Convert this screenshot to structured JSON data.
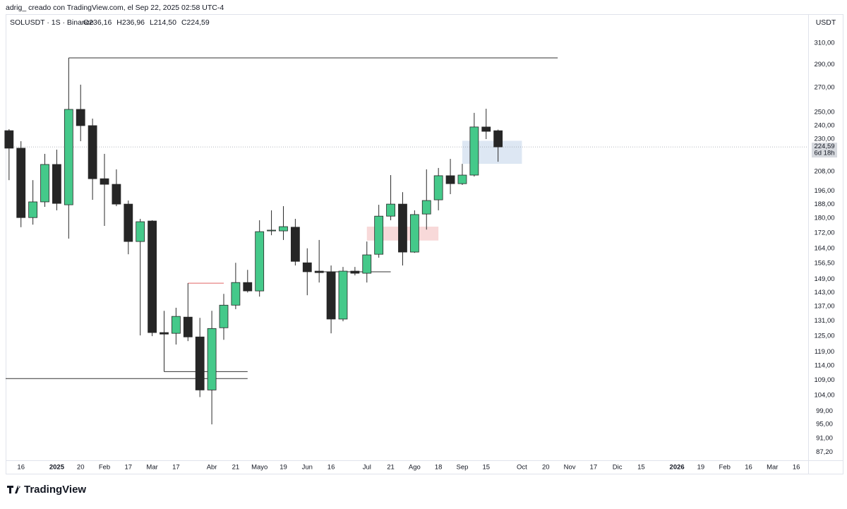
{
  "chart_data": {
    "type": "candlestick",
    "caption": "adrig_ creado con TradingView.com, el Sep 22, 2025 02:58 UTC-4",
    "symbol": "SOLUSDT · 1S · Binance",
    "ohlc_labels": [
      "O236,16",
      "H236,96",
      "L214,50",
      "C224,59"
    ],
    "currency": "USDT",
    "last_price_label": "224,59",
    "countdown": "6d 18h",
    "brand": "TradingView",
    "up_color": "#45c98a",
    "down_color": "#262626",
    "wick_color": "#2a2a2a",
    "log_scale": true,
    "grid": false,
    "x": [
      "2024-12-09",
      "2024-12-16",
      "2024-12-23",
      "2024-12-30",
      "2025-01-06",
      "2025-01-13",
      "2025-01-20",
      "2025-01-27",
      "2025-02-03",
      "2025-02-10",
      "2025-02-17",
      "2025-02-24",
      "2025-03-03",
      "2025-03-10",
      "2025-03-17",
      "2025-03-24",
      "2025-03-31",
      "2025-04-07",
      "2025-04-14",
      "2025-04-21",
      "2025-04-28",
      "2025-05-05",
      "2025-05-12",
      "2025-05-19",
      "2025-05-26",
      "2025-06-02",
      "2025-06-09",
      "2025-06-16",
      "2025-06-23",
      "2025-06-30",
      "2025-07-07",
      "2025-07-14",
      "2025-07-21",
      "2025-07-28",
      "2025-08-04",
      "2025-08-11",
      "2025-08-18",
      "2025-08-25",
      "2025-09-01",
      "2025-09-08",
      "2025-09-15",
      "2025-09-22"
    ],
    "open": [
      236.2,
      223.7,
      180.4,
      189.4,
      212.7,
      187.7,
      252.3,
      239.9,
      203.5,
      200.0,
      188.1,
      167.5,
      178.5,
      126.3,
      126.0,
      132.5,
      124.6,
      105.7,
      128.2,
      137.5,
      147.5,
      143.7,
      173.1,
      173.1,
      175.1,
      156.8,
      152.8,
      152.5,
      131.7,
      152.8,
      151.8,
      161.0,
      181.2,
      188.1,
      162.1,
      182.4,
      190.6,
      205.4,
      200.4,
      205.8,
      238.9,
      236.16
    ],
    "high": [
      237.3,
      228.6,
      202.6,
      219.8,
      222.7,
      296.0,
      272.4,
      245.2,
      219.8,
      209.5,
      190.2,
      179.7,
      178.9,
      135.1,
      136.4,
      147.2,
      132.2,
      135.1,
      142.4,
      156.8,
      153.4,
      178.9,
      184.5,
      186.9,
      179.7,
      164.0,
      168.3,
      155.5,
      154.8,
      154.8,
      167.5,
      187.7,
      205.8,
      195.2,
      184.5,
      209.5,
      210.4,
      216.4,
      213.1,
      249.6,
      252.8,
      236.96
    ],
    "low": [
      202.6,
      175.1,
      176.5,
      186.5,
      184.5,
      169.0,
      228.6,
      190.6,
      175.8,
      186.9,
      161.0,
      125.2,
      124.9,
      111.9,
      121.7,
      123.0,
      103.4,
      95.0,
      123.5,
      135.8,
      143.0,
      141.2,
      170.8,
      168.3,
      155.5,
      141.8,
      147.5,
      126.0,
      130.8,
      150.8,
      147.5,
      159.3,
      178.9,
      155.5,
      161.7,
      173.8,
      184.5,
      194.0,
      199.6,
      204.9,
      230.1,
      214.5
    ],
    "close": [
      223.7,
      180.4,
      189.4,
      212.7,
      188.5,
      252.3,
      239.9,
      203.5,
      200.0,
      188.1,
      167.5,
      178.1,
      126.3,
      125.7,
      132.8,
      124.6,
      105.7,
      127.9,
      137.5,
      147.5,
      143.7,
      172.7,
      173.5,
      175.4,
      157.5,
      152.5,
      152.1,
      131.7,
      152.8,
      151.8,
      160.7,
      181.2,
      188.1,
      162.1,
      182.1,
      190.2,
      205.4,
      200.4,
      205.8,
      238.9,
      235.7,
      224.59
    ],
    "drawings": [
      {
        "kind": "hline",
        "price": 296.0,
        "from": "2025-01-13",
        "to": "2025-10-27",
        "color": "#333333"
      },
      {
        "kind": "hline",
        "price": 147.2,
        "from": "2025-03-24",
        "to": "2025-04-14",
        "color": "#e06666"
      },
      {
        "kind": "hline",
        "price": 111.9,
        "from": "2025-03-10",
        "to": "2025-04-28",
        "color": "#333333"
      },
      {
        "kind": "hline",
        "price": 109.5,
        "from": "2024-12-07",
        "to": "2025-04-28",
        "color": "#333333"
      },
      {
        "kind": "hline",
        "price": 152.5,
        "from": "2025-06-09",
        "to": "2025-07-21",
        "color": "#333333"
      },
      {
        "kind": "box",
        "top": 175.4,
        "bottom": 168.0,
        "from": "2025-07-07",
        "to": "2025-08-18",
        "color": "#f8d9d9"
      },
      {
        "kind": "box",
        "top": 228.9,
        "bottom": 213.1,
        "from": "2025-09-01",
        "to": "2025-10-06",
        "color": "#dde7f3"
      }
    ],
    "xlim": [
      "2024-12-07",
      "2026-03-23"
    ],
    "xticks": [
      {
        "value": "2024-12-16",
        "label": "16"
      },
      {
        "value": "2025-01-06",
        "label": "2025"
      },
      {
        "value": "2025-01-20",
        "label": "20"
      },
      {
        "value": "2025-02-03",
        "label": "Feb"
      },
      {
        "value": "2025-02-17",
        "label": "17"
      },
      {
        "value": "2025-03-03",
        "label": "Mar"
      },
      {
        "value": "2025-03-17",
        "label": "17"
      },
      {
        "value": "2025-04-07",
        "label": "Abr"
      },
      {
        "value": "2025-04-21",
        "label": "21"
      },
      {
        "value": "2025-05-05",
        "label": "Mayo"
      },
      {
        "value": "2025-05-19",
        "label": "19"
      },
      {
        "value": "2025-06-02",
        "label": "Jun"
      },
      {
        "value": "2025-06-16",
        "label": "16"
      },
      {
        "value": "2025-07-07",
        "label": "Jul"
      },
      {
        "value": "2025-07-21",
        "label": "21"
      },
      {
        "value": "2025-08-04",
        "label": "Ago"
      },
      {
        "value": "2025-08-18",
        "label": "18"
      },
      {
        "value": "2025-09-01",
        "label": "Sep"
      },
      {
        "value": "2025-09-15",
        "label": "15"
      },
      {
        "value": "2025-10-06",
        "label": "Oct"
      },
      {
        "value": "2025-10-20",
        "label": "20"
      },
      {
        "value": "2025-11-03",
        "label": "Nov"
      },
      {
        "value": "2025-11-17",
        "label": "17"
      },
      {
        "value": "2025-12-01",
        "label": "Dic"
      },
      {
        "value": "2025-12-15",
        "label": "15"
      },
      {
        "value": "2026-01-05",
        "label": "2026"
      },
      {
        "value": "2026-01-19",
        "label": "19"
      },
      {
        "value": "2026-02-02",
        "label": "Feb"
      },
      {
        "value": "2026-02-16",
        "label": "16"
      },
      {
        "value": "2026-03-02",
        "label": "Mar"
      },
      {
        "value": "2026-03-16",
        "label": "16"
      }
    ],
    "ylim": [
      85,
      339
    ],
    "yticks": [
      {
        "value": 310,
        "label": "310,00"
      },
      {
        "value": 290,
        "label": "290,00"
      },
      {
        "value": 270,
        "label": "270,00"
      },
      {
        "value": 250,
        "label": "250,00"
      },
      {
        "value": 240,
        "label": "240,00"
      },
      {
        "value": 230,
        "label": "230,00"
      },
      {
        "value": 208,
        "label": "208,00"
      },
      {
        "value": 196,
        "label": "196,00"
      },
      {
        "value": 188,
        "label": "188,00"
      },
      {
        "value": 180,
        "label": "180,00"
      },
      {
        "value": 172,
        "label": "172,00"
      },
      {
        "value": 164,
        "label": "164,00"
      },
      {
        "value": 156.5,
        "label": "156,50"
      },
      {
        "value": 149,
        "label": "149,00"
      },
      {
        "value": 143,
        "label": "143,00"
      },
      {
        "value": 137,
        "label": "137,00"
      },
      {
        "value": 131,
        "label": "131,00"
      },
      {
        "value": 125,
        "label": "125,00"
      },
      {
        "value": 119,
        "label": "119,00"
      },
      {
        "value": 114,
        "label": "114,00"
      },
      {
        "value": 109,
        "label": "109,00"
      },
      {
        "value": 104,
        "label": "104,00"
      },
      {
        "value": 99,
        "label": "99,00"
      },
      {
        "value": 95,
        "label": "95,00"
      },
      {
        "value": 91,
        "label": "91,00"
      },
      {
        "value": 87.2,
        "label": "87,20"
      }
    ]
  }
}
